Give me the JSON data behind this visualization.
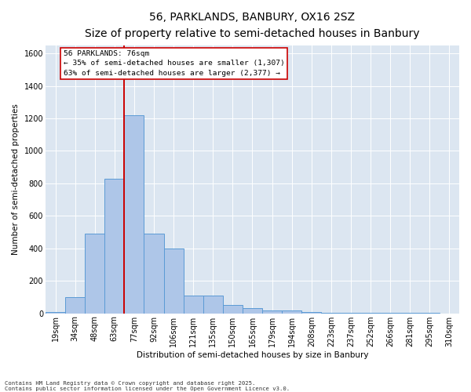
{
  "title": "56, PARKLANDS, BANBURY, OX16 2SZ",
  "subtitle": "Size of property relative to semi-detached houses in Banbury",
  "xlabel": "Distribution of semi-detached houses by size in Banbury",
  "ylabel": "Number of semi-detached properties",
  "bins": [
    "19sqm",
    "34sqm",
    "48sqm",
    "63sqm",
    "77sqm",
    "92sqm",
    "106sqm",
    "121sqm",
    "135sqm",
    "150sqm",
    "165sqm",
    "179sqm",
    "194sqm",
    "208sqm",
    "223sqm",
    "237sqm",
    "252sqm",
    "266sqm",
    "281sqm",
    "295sqm",
    "310sqm"
  ],
  "values": [
    10,
    100,
    490,
    830,
    1220,
    490,
    400,
    110,
    110,
    50,
    30,
    20,
    20,
    10,
    5,
    5,
    5,
    5,
    2,
    2,
    0
  ],
  "bar_color": "#aec6e8",
  "bar_edge_color": "#5b9bd5",
  "vline_index": 4,
  "vline_color": "#cc0000",
  "annotation_line1": "56 PARKLANDS: 76sqm",
  "annotation_line2": "← 35% of semi-detached houses are smaller (1,307)",
  "annotation_line3": "63% of semi-detached houses are larger (2,377) →",
  "annotation_box_facecolor": "#ffffff",
  "annotation_box_edgecolor": "#cc0000",
  "footer_line1": "Contains HM Land Registry data © Crown copyright and database right 2025.",
  "footer_line2": "Contains public sector information licensed under the Open Government Licence v3.0.",
  "ylim": [
    0,
    1650
  ],
  "yticks": [
    0,
    200,
    400,
    600,
    800,
    1000,
    1200,
    1400,
    1600
  ],
  "plot_bg_color": "#dce6f1",
  "grid_color": "#ffffff",
  "title_fontsize": 10,
  "subtitle_fontsize": 8.5,
  "axis_label_fontsize": 7.5,
  "tick_fontsize": 7,
  "annotation_fontsize": 6.8,
  "footer_fontsize": 5.2
}
